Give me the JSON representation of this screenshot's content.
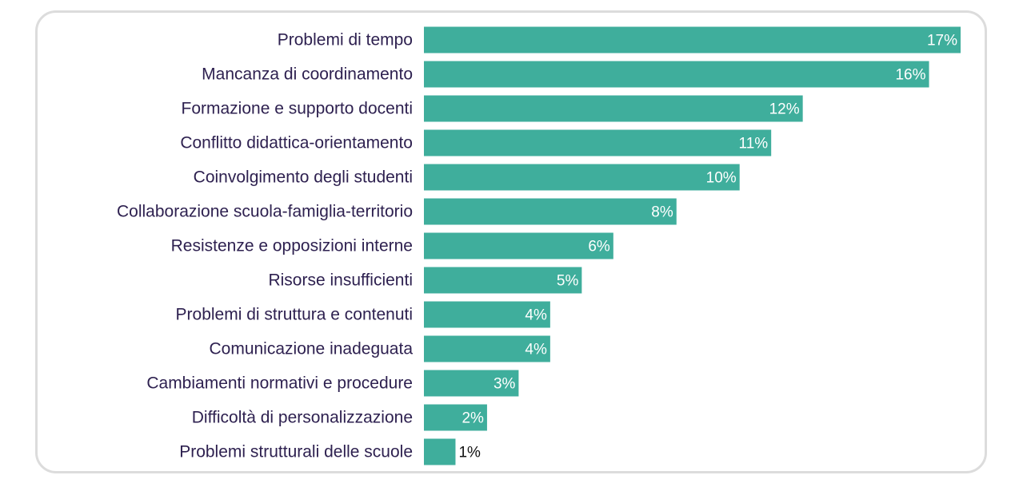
{
  "chart_data": {
    "type": "bar",
    "orientation": "horizontal",
    "title": "",
    "xlabel": "",
    "ylabel": "",
    "xlim": [
      0,
      17
    ],
    "grid": false,
    "legend": "none",
    "bar_color": "#3fae9c",
    "categories": [
      "Problemi di tempo",
      "Mancanza di coordinamento",
      "Formazione e supporto docenti",
      "Conflitto didattica-orientamento",
      "Coinvolgimento degli studenti",
      "Collaborazione scuola-famiglia-territorio",
      "Resistenze e opposizioni interne",
      "Risorse insufficienti",
      "Problemi di struttura e contenuti",
      "Comunicazione inadeguata",
      "Cambiamenti normativi e procedure",
      "Difficoltà di personalizzazione",
      "Problemi strutturali delle scuole"
    ],
    "values": [
      17,
      16,
      12,
      11,
      10,
      8,
      6,
      5,
      4,
      4,
      3,
      2,
      1
    ],
    "value_labels": [
      "17%",
      "16%",
      "12%",
      "11%",
      "10%",
      "8%",
      "6%",
      "5%",
      "4%",
      "4%",
      "3%",
      "2%",
      "1%"
    ]
  }
}
